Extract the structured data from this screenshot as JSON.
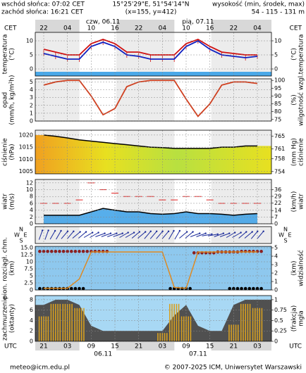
{
  "header": {
    "sunrise": "wschód słońca: 07:02 CET",
    "sunset": "zachód słońca: 16:21 CET",
    "coords": "15°25'29\"E, 51°54'14\"N",
    "grid": "(x=155, y=412)",
    "height_title": "wysokość (min, środek, max)",
    "height_values": "54 - 115 - 131 m"
  },
  "footer": {
    "email": "meteo@icm.edu.pl",
    "copyright": "© 2007-2025 ICM, Uniwersytet Warszawski"
  },
  "time": {
    "cet_label": "CET",
    "cet_categories": [
      "22",
      null,
      "04",
      null,
      "10",
      null,
      "16",
      null,
      "22",
      null,
      "04",
      null,
      "10",
      null,
      "16",
      null,
      "22",
      null,
      "04"
    ],
    "cet_dates": [
      "czw, 06.11",
      "pią, 07.11"
    ],
    "utc_label": "UTC",
    "utc_categories": [
      "21",
      null,
      "03",
      null,
      "09",
      null,
      "15",
      null,
      "21",
      null,
      "03",
      null,
      "09",
      null,
      "15",
      null,
      "21",
      null,
      "03"
    ],
    "utc_dates": [
      "06.11",
      "07.11"
    ]
  },
  "chart_data": [
    {
      "type": "line",
      "ylabel": [
        "temperatura",
        "(°C)"
      ],
      "y2label": [
        "temperatura",
        "(°C)"
      ],
      "ylim": [
        -2.5,
        13
      ],
      "yticks": [
        0,
        5,
        10
      ],
      "y2lim": [
        -2.5,
        13
      ],
      "y2ticks": [
        0,
        5,
        10
      ],
      "series": [
        {
          "name": "max",
          "color": "#d01010",
          "values": [
            7,
            6,
            5,
            5,
            9,
            10.5,
            9,
            6,
            6,
            5,
            5,
            5,
            9,
            10.5,
            8,
            6,
            5.5,
            5,
            5
          ]
        },
        {
          "name": "temp",
          "color": "#1020c0",
          "values": [
            5.5,
            4.5,
            3.5,
            3.5,
            8,
            9.5,
            8,
            5,
            4.5,
            3.5,
            3.5,
            3.5,
            8,
            10,
            7,
            5,
            4.5,
            4,
            4.5
          ]
        }
      ]
    },
    {
      "type": "line",
      "ylabel": [
        "opad",
        "(mm/h, kg/m²h)"
      ],
      "y2label": [
        "wilgotność wzgl.",
        "(%)"
      ],
      "ylim": [
        0,
        5.4
      ],
      "yticks": [
        0,
        1,
        2,
        3,
        4,
        5
      ],
      "y2lim": [
        74,
        101
      ],
      "y2ticks": [
        75,
        80,
        85,
        90,
        95,
        100
      ],
      "series": [
        {
          "name": "wilgotność",
          "color": "#d04020",
          "axis": "y2",
          "values": [
            97,
            99,
            100,
            100,
            90,
            78,
            82,
            96,
            99,
            100,
            100,
            100,
            88,
            77,
            85,
            97,
            99,
            99,
            98
          ]
        }
      ]
    },
    {
      "type": "area",
      "ylabel": [
        "ciśnienie",
        "(hPa)"
      ],
      "y2label": [
        "ciśnienie",
        "(mm Hg)"
      ],
      "ylim": [
        1004,
        1022
      ],
      "yticks": [
        1005,
        1010,
        1015,
        1020
      ],
      "y2lim": [
        753.3,
        766.8
      ],
      "y2ticks": [
        754,
        758,
        761,
        765
      ],
      "series": [
        {
          "name": "ciśnienie",
          "color": "#000000",
          "values": [
            1020,
            1019.5,
            1018.8,
            1018,
            1017.5,
            1017,
            1016.5,
            1016,
            1015.5,
            1015,
            1014.8,
            1014.5,
            1014.5,
            1014.5,
            1014.5,
            1015,
            1015,
            1015.5,
            1015.5
          ]
        }
      ]
    },
    {
      "type": "wind",
      "ylabel": [
        "wiatr",
        "(m/s)"
      ],
      "y2label": [
        "wiatr",
        "(km/h)"
      ],
      "ylim": [
        0,
        13
      ],
      "yticks": [
        0,
        2,
        4,
        6,
        8,
        10,
        12
      ],
      "y2lim": [
        0,
        46.8
      ],
      "y2ticks": [
        0,
        7,
        14,
        22,
        29,
        36
      ],
      "series": [
        {
          "name": "średnia",
          "color": "#000000",
          "values": [
            2.5,
            2.5,
            2.5,
            2.5,
            3.5,
            4.5,
            4,
            3.5,
            3.5,
            3,
            2.8,
            3,
            3.5,
            3,
            3,
            2.8,
            2.5,
            2.8,
            3
          ]
        },
        {
          "name": "porywy",
          "color": "#e02020",
          "values": [
            6,
            6,
            6,
            7,
            12,
            10,
            9,
            8,
            8,
            8,
            7,
            7,
            8,
            8,
            7,
            6,
            6,
            6,
            6
          ]
        }
      ]
    },
    {
      "type": "arrows",
      "compass": [
        "N",
        "E",
        "S",
        "W"
      ],
      "color": "#1a2a9a",
      "values": [
        200,
        210,
        220,
        230,
        240,
        250,
        250,
        240,
        230,
        220,
        220,
        210,
        230,
        250,
        260,
        250,
        240,
        230,
        220
      ]
    },
    {
      "type": "cloudbase",
      "ylabel": [
        "pion. rozciągł. chm.",
        "(km)"
      ],
      "y2label": [
        "widzialność",
        "(km)"
      ],
      "ylim": [
        0,
        15.5
      ],
      "yticks": [
        0,
        2.5,
        5,
        7.5,
        10,
        12.5,
        {
          "value": 15,
          "label": "15.0"
        }
      ],
      "y2lim": [
        0,
        5.17
      ],
      "y2ticks": [
        0,
        1,
        2,
        3,
        4,
        5
      ],
      "series": [
        {
          "name": "górna granica",
          "color": "#8b2020",
          "values": [
            13.7,
            13.7,
            13.7,
            13.7,
            13.7,
            13.7,
            null,
            null,
            null,
            null,
            null,
            null,
            null,
            13.2,
            13.2,
            13.5,
            13.5,
            13.7,
            13.7
          ]
        },
        {
          "name": "dolna granica",
          "color": "#000000",
          "values": [
            0.5,
            0.5,
            0.5,
            0.5,
            null,
            null,
            null,
            null,
            null,
            null,
            null,
            0.5,
            0.5,
            null,
            null,
            null,
            0.5,
            0.5,
            0.5
          ]
        },
        {
          "name": "widzialność",
          "color": "#e08a20",
          "axis": "y2",
          "values": [
            0.2,
            0.2,
            0.2,
            1.3,
            4.5,
            4.5,
            4.5,
            4.5,
            4.5,
            4.5,
            4.5,
            0.3,
            0.2,
            4.5,
            4.5,
            4.5,
            4.5,
            4.5,
            4.5
          ]
        }
      ]
    },
    {
      "type": "clouds",
      "ylabel": [
        "zachmurzenie",
        "(oktanty)"
      ],
      "y2label": [
        "mgła",
        "(frakcja)"
      ],
      "ylim": [
        0,
        8.8
      ],
      "yticks": [
        0,
        2,
        4,
        6,
        8
      ],
      "y2lim": [
        0,
        1.1
      ],
      "y2ticks": [
        0,
        0.25,
        0.5,
        0.75,
        1
      ],
      "series": [
        {
          "name": "zachmurzenie",
          "color": "#505050",
          "values": [
            7,
            8,
            8,
            7,
            3,
            2,
            2,
            2,
            2,
            2,
            2,
            5,
            7,
            3,
            2,
            2,
            7,
            8,
            8
          ]
        },
        {
          "name": "mgła",
          "color": "#d8a020",
          "axis": "y2",
          "values": [
            0.6,
            0.9,
            0.9,
            0.8,
            0,
            0,
            0,
            0,
            0,
            0,
            0.2,
            0.9,
            0.6,
            0,
            0,
            0,
            0.4,
            0.9,
            0.8
          ]
        }
      ]
    }
  ]
}
